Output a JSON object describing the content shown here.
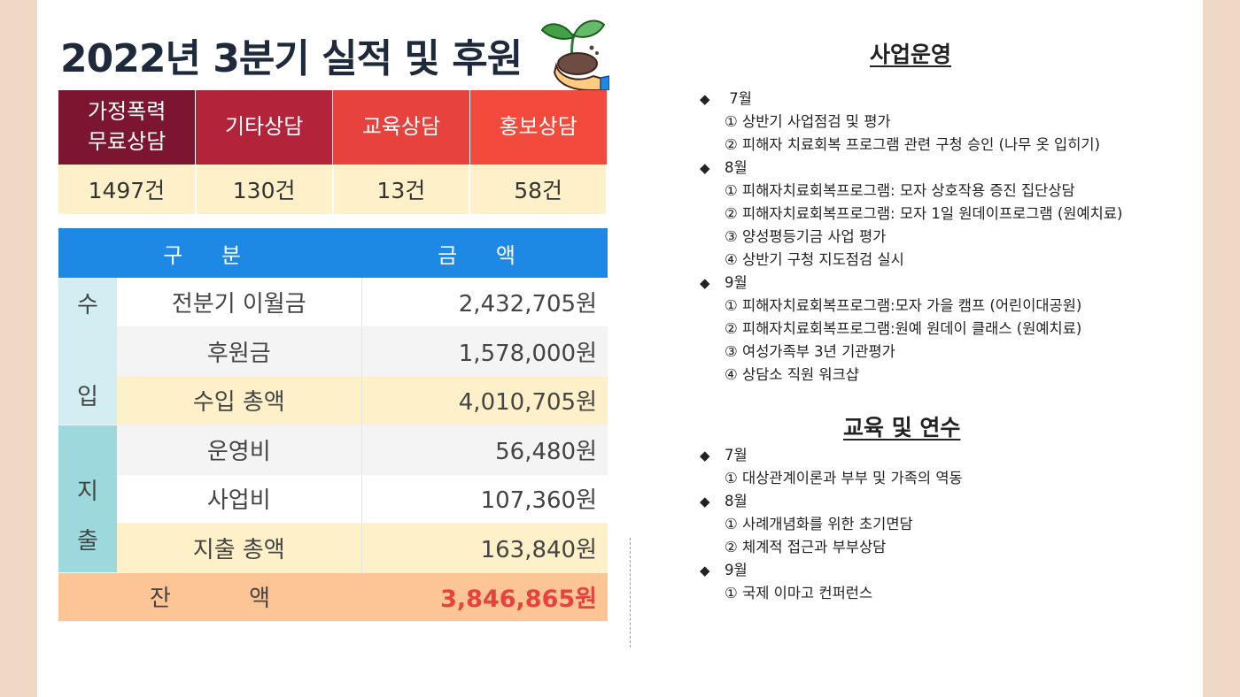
{
  "title": "2022년 3분기  실적 및 후원",
  "counseling": {
    "headers": [
      "가정폭력 무료상담",
      "기타상담",
      "교육상담",
      "홍보상담"
    ],
    "values": [
      "1497건",
      "130건",
      "13건",
      "58건"
    ]
  },
  "finance": {
    "col_category": "구 분",
    "col_amount": "금 액",
    "income_label": [
      "수",
      "입"
    ],
    "expense_label": [
      "지",
      "출"
    ],
    "rows": [
      {
        "label": "전분기 이월금",
        "amount": "2,432,705원"
      },
      {
        "label": "후원금",
        "amount": "1,578,000원"
      },
      {
        "label": "수입 총액",
        "amount": "4,010,705원"
      },
      {
        "label": "운영비",
        "amount": "56,480원"
      },
      {
        "label": "사업비",
        "amount": "107,360원"
      },
      {
        "label": "지출 총액",
        "amount": "163,840원"
      }
    ],
    "balance_label": "잔 액",
    "balance_amount": "3,846,865원"
  },
  "business": {
    "title": "사업운영",
    "groups": [
      {
        "month": " 7월",
        "items": [
          "① 상반기 사업점검 및 평가",
          "② 피해자 치료회복 프로그램 관련 구청 승인 (나무 옷 입히기)"
        ]
      },
      {
        "month": "8월",
        "items": [
          "① 피해자치료회복프로그램: 모자 상호작용 증진 집단상담",
          "② 피해자치료회복프로그램: 모자 1일 원데이프로그램 (원예치료)",
          "③ 양성평등기금 사업 평가",
          "④ 상반기 구청 지도점검 실시"
        ]
      },
      {
        "month": "9월",
        "items": [
          "① 피해자치료회복프로그램:모자 가을 캠프 (어린이대공원)",
          "② 피해자치료회복프로그램:원예 원데이 클래스 (원예치료)",
          "③ 여성가족부 3년 기관평가",
          "④ 상담소 직원 워크샵"
        ]
      }
    ]
  },
  "education": {
    "title": "교육 및 연수",
    "groups": [
      {
        "month": "7월",
        "items": [
          " ① 대상관계이론과 부부 및 가족의 역동"
        ]
      },
      {
        "month": "8월",
        "items": [
          "① 사례개념화를 위한 초기면담",
          "② 체계적 접근과 부부상담"
        ]
      },
      {
        "month": "9월",
        "items": [
          " ① 국제 이마고 컨퍼런스"
        ]
      }
    ]
  },
  "icons": {
    "bullet": "diamond-bullet",
    "decoration": "sprout-in-hand-icon"
  }
}
